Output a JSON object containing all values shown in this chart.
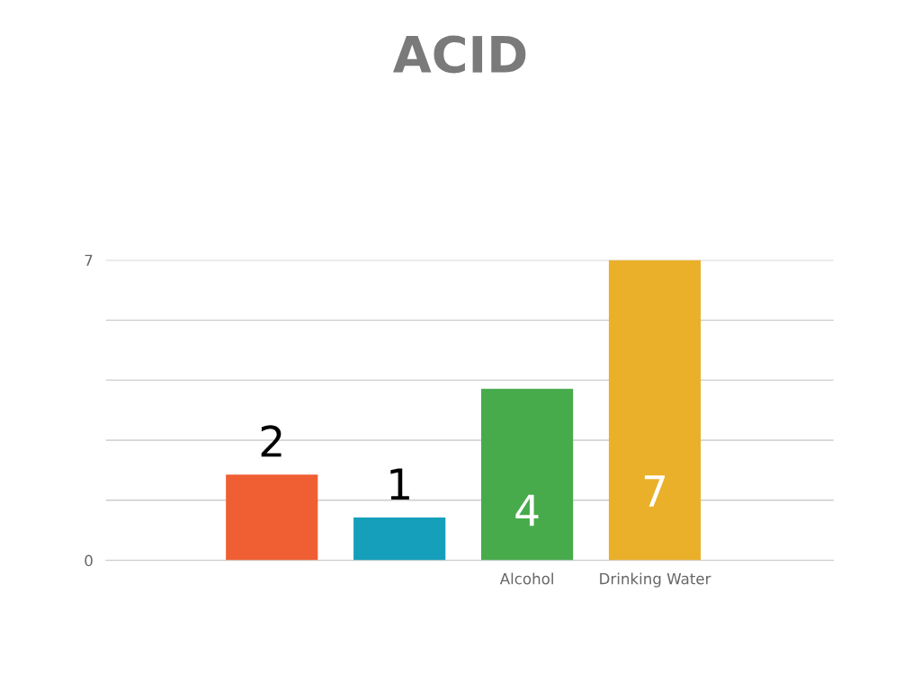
{
  "chart_data": {
    "type": "bar",
    "title": "ACID",
    "categories": [
      null,
      null,
      "Alcohol",
      "Drinking Water"
    ],
    "values": [
      2,
      1,
      4,
      7
    ],
    "colors": [
      "#f05f33",
      "#159fbb",
      "#47ab4b",
      "#eab029"
    ],
    "data_labels": true,
    "ylim": [
      0,
      7
    ],
    "yticks": [
      0,
      {
        "value": 1.4,
        "label": null
      },
      {
        "value": 2.8,
        "label": null
      },
      {
        "value": 4.2,
        "label": null
      },
      {
        "value": 5.6,
        "label": null
      },
      7
    ],
    "grid": "y"
  }
}
